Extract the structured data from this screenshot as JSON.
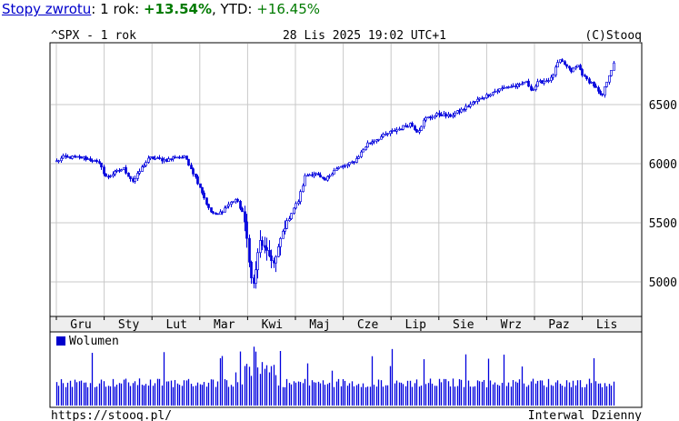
{
  "header": {
    "returns_link": "Stopy zwrotu",
    "colon": ":",
    "period_label": " 1 rok: ",
    "period_value": "+13.54%",
    "ytd_label": ", YTD: ",
    "ytd_value": "+16.45%"
  },
  "chart_header": {
    "symbol": "^SPX - 1 rok",
    "datetime": "28 Lis 2025 19:02 UTC+1",
    "copyright": "(C)Stooq"
  },
  "footer": {
    "url": "https://stooq.pl/",
    "interval": "Interwal Dzienny"
  },
  "colors": {
    "candle": "#0000dd",
    "grid": "#c8c8c8",
    "background": "#ffffff"
  },
  "chart_data": [
    {
      "type": "candlestick",
      "title": "^SPX - 1 rok",
      "x_ticks": [
        "Gru",
        "Sty",
        "Lut",
        "Mar",
        "Kwi",
        "Maj",
        "Cze",
        "Lip",
        "Sie",
        "Wrz",
        "Paz",
        "Lis"
      ],
      "y_ticks": [
        5000,
        5500,
        6000,
        6500
      ],
      "ylim": [
        4760,
        6960
      ],
      "grid": true,
      "anchors": [
        {
          "x": 0,
          "y": 6020
        },
        {
          "x": 0.15,
          "y": 6055
        },
        {
          "x": 0.55,
          "y": 6050
        },
        {
          "x": 0.75,
          "y": 6030
        },
        {
          "x": 0.95,
          "y": 5980
        },
        {
          "x": 1.0,
          "y": 5880
        },
        {
          "x": 1.2,
          "y": 5920
        },
        {
          "x": 1.4,
          "y": 5960
        },
        {
          "x": 1.5,
          "y": 5900
        },
        {
          "x": 1.6,
          "y": 5850
        },
        {
          "x": 1.8,
          "y": 5980
        },
        {
          "x": 1.95,
          "y": 6050
        },
        {
          "x": 2.1,
          "y": 6040
        },
        {
          "x": 2.3,
          "y": 6030
        },
        {
          "x": 2.5,
          "y": 6060
        },
        {
          "x": 2.7,
          "y": 6050
        },
        {
          "x": 2.8,
          "y": 5970
        },
        {
          "x": 3.0,
          "y": 5800
        },
        {
          "x": 3.2,
          "y": 5600
        },
        {
          "x": 3.35,
          "y": 5560
        },
        {
          "x": 3.55,
          "y": 5640
        },
        {
          "x": 3.75,
          "y": 5700
        },
        {
          "x": 3.9,
          "y": 5580
        },
        {
          "x": 4.0,
          "y": 5300
        },
        {
          "x": 4.05,
          "y": 5050
        },
        {
          "x": 4.12,
          "y": 4980
        },
        {
          "x": 4.25,
          "y": 5350
        },
        {
          "x": 4.4,
          "y": 5250
        },
        {
          "x": 4.55,
          "y": 5150
        },
        {
          "x": 4.7,
          "y": 5400
        },
        {
          "x": 4.95,
          "y": 5620
        },
        {
          "x": 5.05,
          "y": 5680
        },
        {
          "x": 5.2,
          "y": 5900
        },
        {
          "x": 5.4,
          "y": 5920
        },
        {
          "x": 5.6,
          "y": 5850
        },
        {
          "x": 5.8,
          "y": 5950
        },
        {
          "x": 6.0,
          "y": 5980
        },
        {
          "x": 6.1,
          "y": 5990
        },
        {
          "x": 6.25,
          "y": 6030
        },
        {
          "x": 6.5,
          "y": 6170
        },
        {
          "x": 6.8,
          "y": 6230
        },
        {
          "x": 7.0,
          "y": 6270
        },
        {
          "x": 7.2,
          "y": 6300
        },
        {
          "x": 7.4,
          "y": 6340
        },
        {
          "x": 7.55,
          "y": 6270
        },
        {
          "x": 7.7,
          "y": 6380
        },
        {
          "x": 8.0,
          "y": 6420
        },
        {
          "x": 8.2,
          "y": 6400
        },
        {
          "x": 8.5,
          "y": 6460
        },
        {
          "x": 8.8,
          "y": 6540
        },
        {
          "x": 9.1,
          "y": 6600
        },
        {
          "x": 9.4,
          "y": 6650
        },
        {
          "x": 9.7,
          "y": 6660
        },
        {
          "x": 9.8,
          "y": 6700
        },
        {
          "x": 9.95,
          "y": 6620
        },
        {
          "x": 10.05,
          "y": 6680
        },
        {
          "x": 10.35,
          "y": 6720
        },
        {
          "x": 10.5,
          "y": 6870
        },
        {
          "x": 10.6,
          "y": 6850
        },
        {
          "x": 10.75,
          "y": 6780
        },
        {
          "x": 10.9,
          "y": 6830
        },
        {
          "x": 11.05,
          "y": 6720
        },
        {
          "x": 11.2,
          "y": 6680
        },
        {
          "x": 11.4,
          "y": 6560
        },
        {
          "x": 11.55,
          "y": 6750
        },
        {
          "x": 11.65,
          "y": 6840
        }
      ],
      "volume_series_name": "Wolumen"
    }
  ]
}
